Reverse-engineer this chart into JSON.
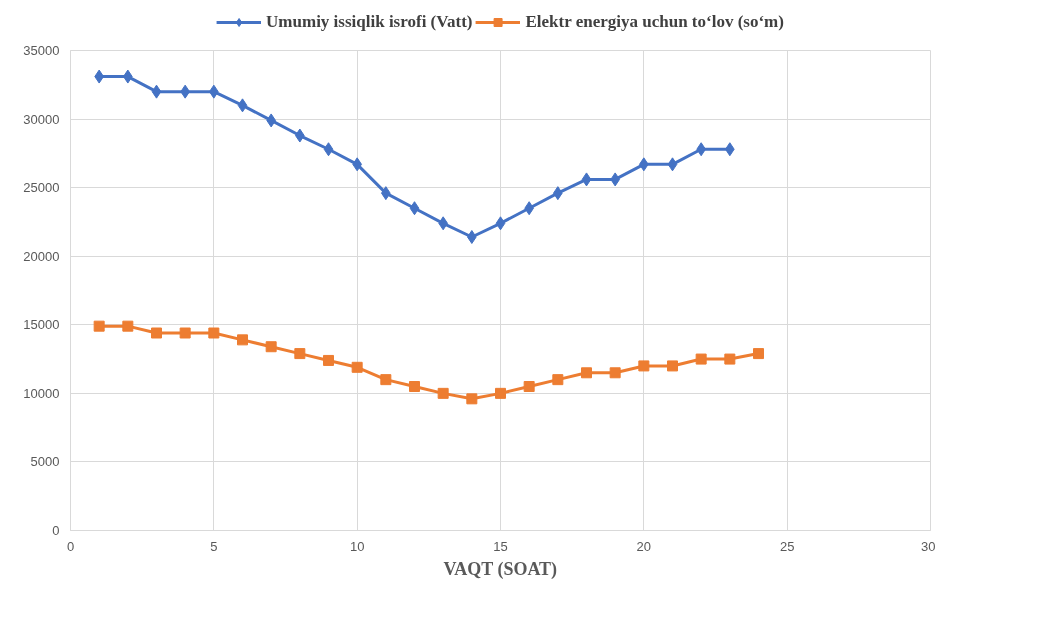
{
  "chart_data": {
    "type": "line",
    "xlabel": "VAQT (SOAT)",
    "xlim": [
      0,
      30
    ],
    "xticks": [
      0,
      5,
      10,
      15,
      20,
      25,
      30
    ],
    "ylim": [
      0,
      35000
    ],
    "yticks": [
      0,
      5000,
      10000,
      15000,
      20000,
      25000,
      30000,
      35000
    ],
    "grid": true,
    "legend": "top",
    "series": [
      {
        "name": "Umumiy issiqlik isrofi (Vatt)",
        "color": "#4472c4",
        "marker": "diamond",
        "x": [
          1,
          2,
          3,
          4,
          5,
          6,
          7,
          8,
          9,
          10,
          11,
          12,
          13,
          14,
          15,
          16,
          17,
          18,
          19,
          20,
          21,
          22,
          23
        ],
        "values": [
          33100,
          33100,
          32000,
          32000,
          32000,
          31000,
          29900,
          28800,
          27800,
          26700,
          24600,
          23500,
          22400,
          21400,
          22400,
          23500,
          24600,
          25600,
          25600,
          26700,
          26700,
          27800,
          27800
        ]
      },
      {
        "name": "Elektr energiya uchun to‘lov (so‘m)",
        "color": "#ed7d31",
        "marker": "square",
        "x": [
          1,
          2,
          3,
          4,
          5,
          6,
          7,
          8,
          9,
          10,
          11,
          12,
          13,
          14,
          15,
          16,
          17,
          18,
          19,
          20,
          21,
          22,
          23,
          24
        ],
        "values": [
          14900,
          14900,
          14400,
          14400,
          14400,
          13900,
          13400,
          12900,
          12400,
          11900,
          11000,
          10500,
          10000,
          9600,
          10000,
          10500,
          11000,
          11500,
          11500,
          12000,
          12000,
          12500,
          12500,
          12900
        ]
      }
    ]
  }
}
